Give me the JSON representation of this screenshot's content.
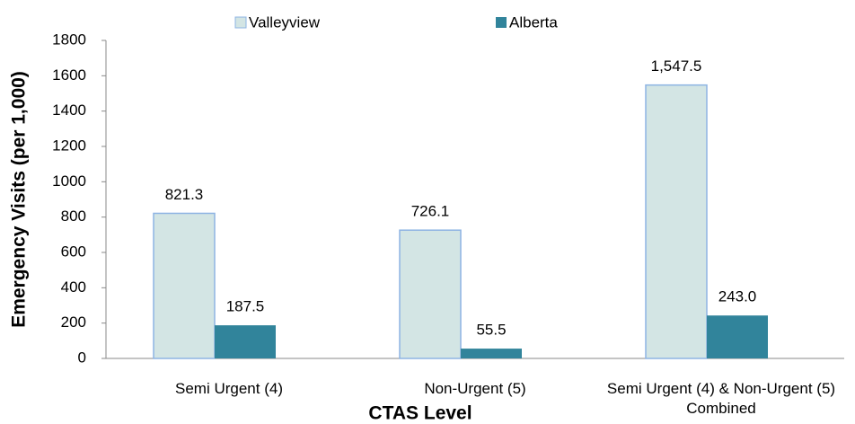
{
  "chart_data": {
    "type": "bar",
    "categories": [
      "Semi Urgent (4)",
      "Non-Urgent (5)",
      "Semi Urgent (4) & Non-Urgent (5) Combined"
    ],
    "series": [
      {
        "name": "Valleyview",
        "color": "#d3e5e4",
        "values": [
          821.3,
          726.1,
          1547.5
        ],
        "value_labels": [
          "821.3",
          "726.1",
          "1,547.5"
        ]
      },
      {
        "name": "Alberta",
        "color": "#31849b",
        "values": [
          187.5,
          55.5,
          243.0
        ],
        "value_labels": [
          "187.5",
          "55.5",
          "243.0"
        ]
      }
    ],
    "x_label": "CTAS Level",
    "y_label": "Emergency Visits (per 1,000)",
    "ylim": [
      0,
      1800
    ],
    "yticks": [
      0,
      200,
      400,
      600,
      800,
      1000,
      1200,
      1400,
      1600,
      1800
    ],
    "legend": "top",
    "grid": false
  }
}
